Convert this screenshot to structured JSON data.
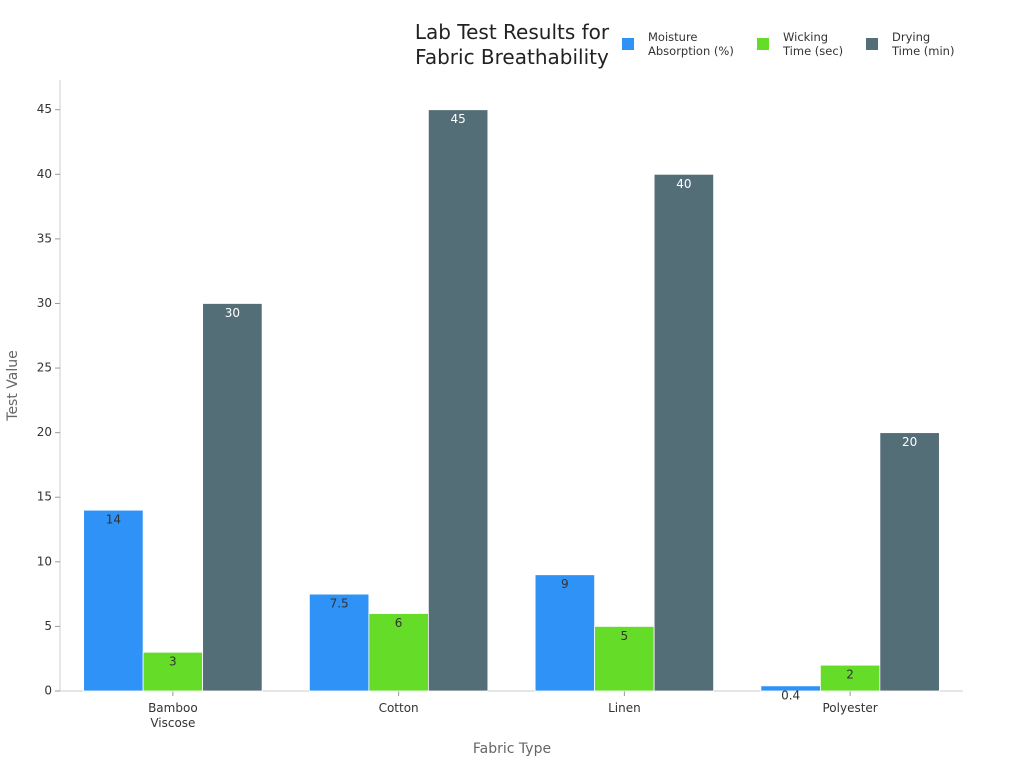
{
  "chart_data": {
    "type": "bar",
    "title": "Lab Test Results for Fabric Breathability",
    "x_label": "Fabric Type",
    "y_label": "Test Value",
    "categories": [
      "Bamboo Viscose",
      "Cotton",
      "Linen",
      "Polyester"
    ],
    "series": [
      {
        "name": "Moisture Absorption (%)",
        "color": "#2f92f7",
        "values": [
          14,
          7.5,
          9,
          0.4
        ]
      },
      {
        "name": "Wicking Time (sec)",
        "color": "#64dc28",
        "values": [
          3,
          6,
          5,
          2
        ]
      },
      {
        "name": "Drying Time (min)",
        "color": "#546e78",
        "values": [
          30,
          45,
          40,
          20
        ]
      }
    ],
    "ylim": [
      0,
      47.3
    ],
    "yticks": [
      0,
      5,
      10,
      15,
      20,
      25,
      30,
      35,
      40,
      45
    ],
    "grid": false,
    "legend": "top-right"
  }
}
